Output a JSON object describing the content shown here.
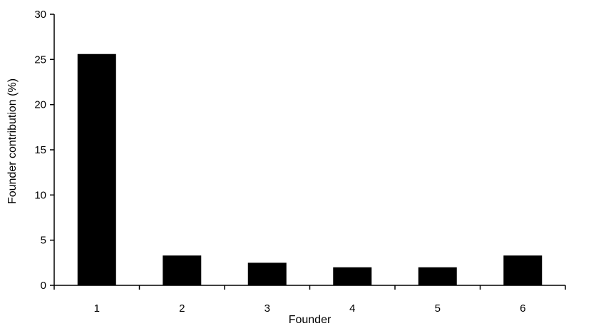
{
  "chart_data": {
    "type": "bar",
    "title": "",
    "xlabel": "Founder",
    "ylabel": "Founder contribution (%)",
    "categories": [
      "1",
      "2",
      "3",
      "4",
      "5",
      "6"
    ],
    "values": [
      25.6,
      3.3,
      2.5,
      2.0,
      2.0,
      3.3
    ],
    "ylim": [
      0,
      30
    ],
    "yticks": [
      "0",
      "5",
      "10",
      "15",
      "20",
      "25",
      "30"
    ],
    "grid": false,
    "legend": "none",
    "bar_color": "#000000",
    "axis_color": "#000000"
  }
}
